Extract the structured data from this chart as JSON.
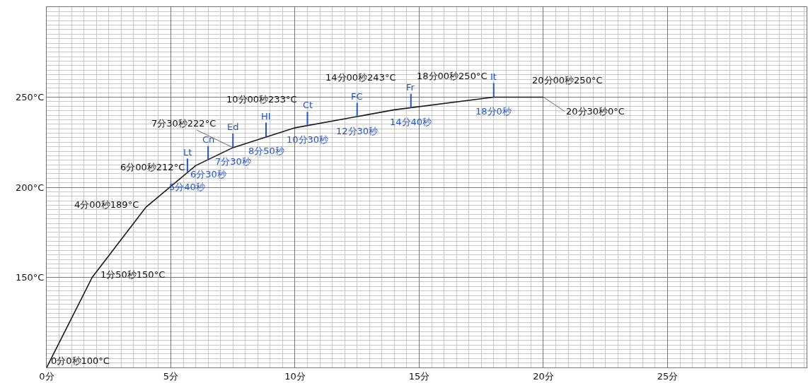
{
  "chart_data": {
    "type": "line",
    "x": [
      0,
      1.833,
      4,
      6,
      7.5,
      10,
      14,
      18,
      20
    ],
    "series": [
      {
        "color": "#1a1a1a",
        "values": [
          100,
          150,
          189,
          212,
          222,
          233,
          243,
          250,
          250
        ]
      }
    ],
    "xlim": [
      0,
      30.6
    ],
    "ylim": [
      100,
      300
    ],
    "xticks": [
      {
        "value": 0,
        "label": "0分"
      },
      {
        "value": 5,
        "label": "5分"
      },
      {
        "value": 10,
        "label": "10分"
      },
      {
        "value": 15,
        "label": "15分"
      },
      {
        "value": 20,
        "label": "20分"
      },
      {
        "value": 25,
        "label": "25分"
      }
    ],
    "yticks": [
      {
        "value": 150,
        "label": "150°C"
      },
      {
        "value": 200,
        "label": "200°C"
      },
      {
        "value": 250,
        "label": "250°C"
      }
    ],
    "grid": true,
    "legend": false,
    "marker": "none",
    "line_style": "solid",
    "annotations": [
      {
        "text": "0分0秒100°C",
        "x": 0,
        "y": 100
      },
      {
        "text": "1分50秒150°C",
        "x": 1.833,
        "y": 150
      },
      {
        "text": "4分00秒189°C",
        "x": 4,
        "y": 189
      },
      {
        "text": "6分00秒212°C",
        "x": 6,
        "y": 212
      },
      {
        "text": "7分30秒222°C",
        "x": 7.5,
        "y": 222
      },
      {
        "text": "10分00秒233°C",
        "x": 10,
        "y": 233
      },
      {
        "text": "14分00秒243°C",
        "x": 14,
        "y": 243
      },
      {
        "text": "18分00秒250°C",
        "x": 18,
        "y": 250
      },
      {
        "text": "20分00秒250°C",
        "x": 20,
        "y": 250
      },
      {
        "text": "20分30秒0°C",
        "x": 20,
        "y": 250
      },
      {
        "text": "Lt",
        "x": 5.667,
        "y": 208
      },
      {
        "text": "5分40秒",
        "x": 5.667,
        "y": 208
      },
      {
        "text": "Cn",
        "x": 6.5,
        "y": 215
      },
      {
        "text": "6分30秒",
        "x": 6.5,
        "y": 215
      },
      {
        "text": "Ed",
        "x": 7.5,
        "y": 222
      },
      {
        "text": "7分30秒",
        "x": 7.5,
        "y": 222
      },
      {
        "text": "HI",
        "x": 8.833,
        "y": 228
      },
      {
        "text": "8分50秒",
        "x": 8.833,
        "y": 228
      },
      {
        "text": "Ct",
        "x": 10.5,
        "y": 234
      },
      {
        "text": "10分30秒",
        "x": 10.5,
        "y": 234
      },
      {
        "text": "FC",
        "x": 12.5,
        "y": 239
      },
      {
        "text": "12分30秒",
        "x": 12.5,
        "y": 239
      },
      {
        "text": "Fr",
        "x": 14.667,
        "y": 244
      },
      {
        "text": "14分40秒",
        "x": 14.667,
        "y": 244
      },
      {
        "text": "It",
        "x": 18,
        "y": 250
      },
      {
        "text": "18分0秒",
        "x": 18,
        "y": 250
      }
    ]
  }
}
